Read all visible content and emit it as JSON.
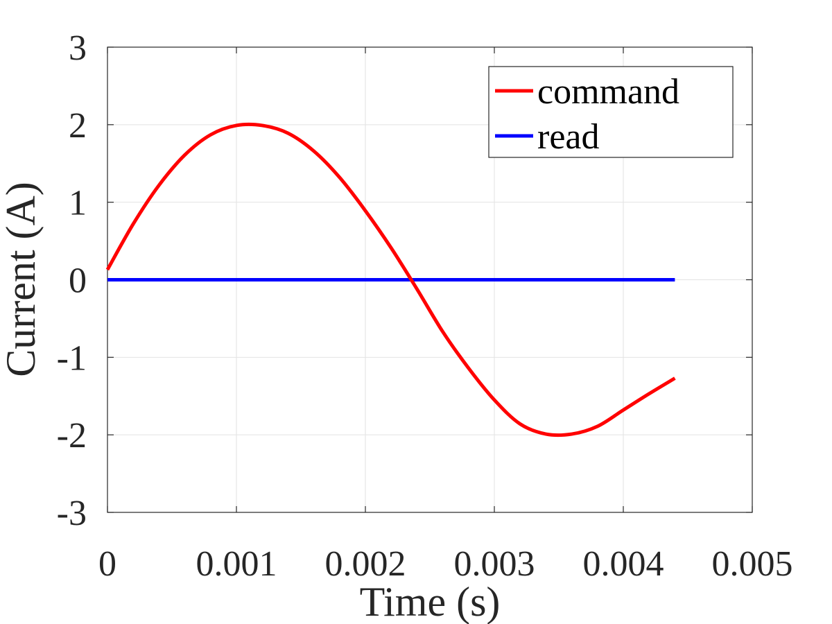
{
  "chart_data": {
    "type": "line",
    "title": "",
    "xlabel": "Time (s)",
    "ylabel": "Current (A)",
    "xlim": [
      0,
      0.005
    ],
    "ylim": [
      -3,
      3
    ],
    "xticks": [
      0,
      0.001,
      0.002,
      0.003,
      0.004,
      0.005
    ],
    "xtick_labels": [
      "0",
      "0.001",
      "0.002",
      "0.003",
      "0.004",
      "0.005"
    ],
    "yticks": [
      3,
      2,
      1,
      0,
      -1,
      -2,
      -3
    ],
    "ytick_labels": [
      "3",
      "2",
      "1",
      "0",
      "-1",
      "-2",
      "-3"
    ],
    "grid": true,
    "legend_position": "top-right",
    "x": [
      0,
      0.0002,
      0.0004,
      0.0006,
      0.0008,
      0.001,
      0.0012,
      0.0014,
      0.0016,
      0.0018,
      0.002,
      0.0022,
      0.0024,
      0.0026,
      0.0028,
      0.003,
      0.0032,
      0.0034,
      0.0036,
      0.0038,
      0.004,
      0.0042,
      0.0044
    ],
    "series": [
      {
        "name": "command",
        "color": "#ff0000",
        "values": [
          0.13,
          0.72,
          1.22,
          1.61,
          1.87,
          1.99,
          1.99,
          1.89,
          1.66,
          1.32,
          0.89,
          0.41,
          -0.12,
          -0.67,
          -1.14,
          -1.55,
          -1.86,
          -1.99,
          -1.99,
          -1.89,
          -1.68,
          -1.47,
          -1.27
        ]
      },
      {
        "name": "read",
        "color": "#0000ff",
        "values": [
          0,
          0,
          0,
          0,
          0,
          0,
          0,
          0,
          0,
          0,
          0,
          0,
          0,
          0,
          0,
          0,
          0,
          0,
          0,
          0,
          0,
          0,
          0
        ]
      }
    ]
  }
}
